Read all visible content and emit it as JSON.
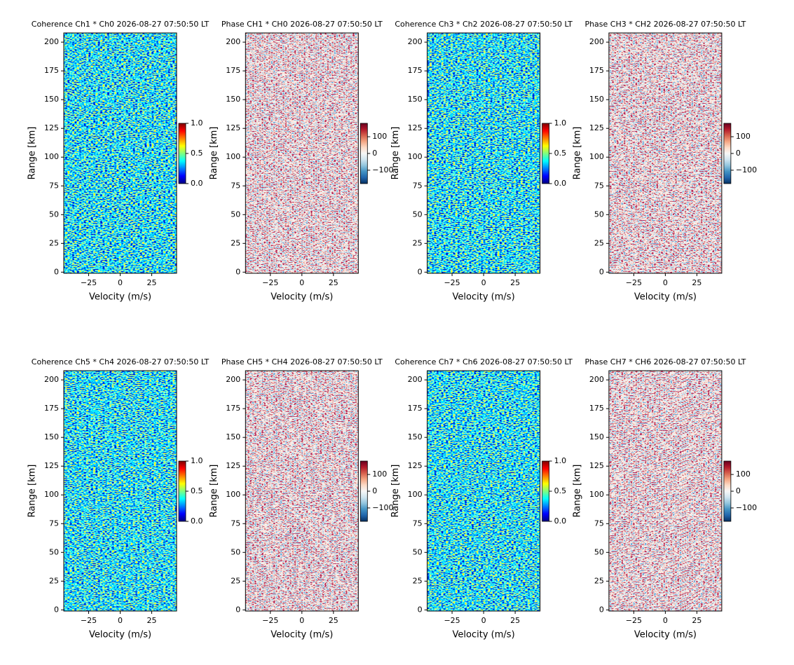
{
  "chart_data": [
    {
      "type": "heatmap",
      "title": "Coherence Ch1 * Ch0 2026-08-27 07:50:50 LT",
      "xlabel": "Velocity (m/s)",
      "ylabel": "Range [km]",
      "xlim": [
        -44.7,
        44.7
      ],
      "ylim": [
        -1,
        208
      ],
      "xticks": [
        {
          "value": -25,
          "label": "−25"
        },
        0,
        25
      ],
      "yticks": [
        0,
        25,
        50,
        75,
        100,
        125,
        150,
        175,
        200
      ],
      "colormap": "jet",
      "colorbar_lim": [
        0,
        1
      ],
      "colorbar_ticks": [
        {
          "value": 0,
          "label": "0.0"
        },
        0.5,
        {
          "value": 1,
          "label": "1.0"
        }
      ]
    },
    {
      "type": "heatmap",
      "title": "Phase CH1 * CH0 2026-08-27 07:50:50 LT",
      "xlabel": "Velocity (m/s)",
      "ylabel": "Range [km]",
      "xlim": [
        -44.7,
        44.7
      ],
      "ylim": [
        -1,
        208
      ],
      "xticks": [
        {
          "value": -25,
          "label": "−25"
        },
        0,
        25
      ],
      "yticks": [
        0,
        25,
        50,
        75,
        100,
        125,
        150,
        175,
        200
      ],
      "colormap": "RdBu_r",
      "colorbar_lim": [
        -180,
        180
      ],
      "colorbar_ticks": [
        {
          "value": -100,
          "label": "−100"
        },
        0,
        100
      ]
    },
    {
      "type": "heatmap",
      "title": "Coherence Ch3 * Ch2 2026-08-27 07:50:50 LT",
      "xlabel": "Velocity (m/s)",
      "ylabel": "Range [km]",
      "xlim": [
        -44.7,
        44.7
      ],
      "ylim": [
        -1,
        208
      ],
      "xticks": [
        {
          "value": -25,
          "label": "−25"
        },
        0,
        25
      ],
      "yticks": [
        0,
        25,
        50,
        75,
        100,
        125,
        150,
        175,
        200
      ],
      "colormap": "jet",
      "colorbar_lim": [
        0,
        1
      ],
      "colorbar_ticks": [
        {
          "value": 0,
          "label": "0.0"
        },
        0.5,
        {
          "value": 1,
          "label": "1.0"
        }
      ]
    },
    {
      "type": "heatmap",
      "title": "Phase CH3 * CH2 2026-08-27 07:50:50 LT",
      "xlabel": "Velocity (m/s)",
      "ylabel": "Range [km]",
      "xlim": [
        -44.7,
        44.7
      ],
      "ylim": [
        -1,
        208
      ],
      "xticks": [
        {
          "value": -25,
          "label": "−25"
        },
        0,
        25
      ],
      "yticks": [
        0,
        25,
        50,
        75,
        100,
        125,
        150,
        175,
        200
      ],
      "colormap": "RdBu_r",
      "colorbar_lim": [
        -180,
        180
      ],
      "colorbar_ticks": [
        {
          "value": -100,
          "label": "−100"
        },
        0,
        100
      ]
    },
    {
      "type": "heatmap",
      "title": "Coherence Ch5 * Ch4 2026-08-27 07:50:50 LT",
      "xlabel": "Velocity (m/s)",
      "ylabel": "Range [km]",
      "xlim": [
        -44.7,
        44.7
      ],
      "ylim": [
        -1,
        208
      ],
      "xticks": [
        {
          "value": -25,
          "label": "−25"
        },
        0,
        25
      ],
      "yticks": [
        0,
        25,
        50,
        75,
        100,
        125,
        150,
        175,
        200
      ],
      "colormap": "jet",
      "colorbar_lim": [
        0,
        1
      ],
      "colorbar_ticks": [
        {
          "value": 0,
          "label": "0.0"
        },
        0.5,
        {
          "value": 1,
          "label": "1.0"
        }
      ]
    },
    {
      "type": "heatmap",
      "title": "Phase CH5 * CH4 2026-08-27 07:50:50 LT",
      "xlabel": "Velocity (m/s)",
      "ylabel": "Range [km]",
      "xlim": [
        -44.7,
        44.7
      ],
      "ylim": [
        -1,
        208
      ],
      "xticks": [
        {
          "value": -25,
          "label": "−25"
        },
        0,
        25
      ],
      "yticks": [
        0,
        25,
        50,
        75,
        100,
        125,
        150,
        175,
        200
      ],
      "colormap": "RdBu_r",
      "colorbar_lim": [
        -180,
        180
      ],
      "colorbar_ticks": [
        {
          "value": -100,
          "label": "−100"
        },
        0,
        100
      ]
    },
    {
      "type": "heatmap",
      "title": "Coherence Ch7 * Ch6 2026-08-27 07:50:50 LT",
      "xlabel": "Velocity (m/s)",
      "ylabel": "Range [km]",
      "xlim": [
        -44.7,
        44.7
      ],
      "ylim": [
        -1,
        208
      ],
      "xticks": [
        {
          "value": -25,
          "label": "−25"
        },
        0,
        25
      ],
      "yticks": [
        0,
        25,
        50,
        75,
        100,
        125,
        150,
        175,
        200
      ],
      "colormap": "jet",
      "colorbar_lim": [
        0,
        1
      ],
      "colorbar_ticks": [
        {
          "value": 0,
          "label": "0.0"
        },
        0.5,
        {
          "value": 1,
          "label": "1.0"
        }
      ]
    },
    {
      "type": "heatmap",
      "title": "Phase CH7 * CH6 2026-08-27 07:50:50 LT",
      "xlabel": "Velocity (m/s)",
      "ylabel": "Range [km]",
      "xlim": [
        -44.7,
        44.7
      ],
      "ylim": [
        -1,
        208
      ],
      "xticks": [
        {
          "value": -25,
          "label": "−25"
        },
        0,
        25
      ],
      "yticks": [
        0,
        25,
        50,
        75,
        100,
        125,
        150,
        175,
        200
      ],
      "colormap": "RdBu_r",
      "colorbar_lim": [
        -180,
        180
      ],
      "colorbar_ticks": [
        {
          "value": -100,
          "label": "−100"
        },
        0,
        100
      ]
    }
  ]
}
